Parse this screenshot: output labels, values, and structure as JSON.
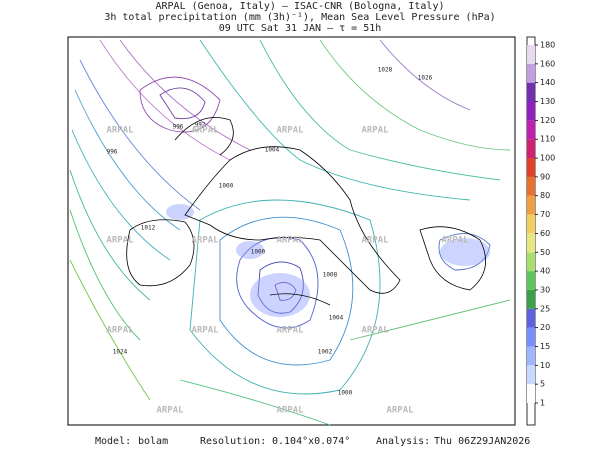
{
  "header": {
    "line1": "ARPAL (Genoa, Italy)  —  ISAC-CNR (Bologna, Italy)",
    "line2": "3h total precipitation (mm (3h)⁻¹), Mean Sea Level Pressure (hPa)",
    "line3": "09 UTC Sat 31 JAN  —  τ = 51h"
  },
  "colorbar": {
    "ticks": [
      1,
      5,
      10,
      15,
      20,
      25,
      30,
      40,
      50,
      60,
      70,
      80,
      90,
      100,
      110,
      120,
      130,
      140,
      160,
      180
    ],
    "colors": [
      "#ffffff",
      "#c8d8ff",
      "#9fb6ff",
      "#7a8fff",
      "#5f62e0",
      "#3aa04a",
      "#5cc85c",
      "#a8e070",
      "#e8e880",
      "#f2d060",
      "#f0a040",
      "#e87030",
      "#e04028",
      "#d02070",
      "#c020b0",
      "#9020c0",
      "#7030b0",
      "#c0a0e0",
      "#e8d8f0"
    ]
  },
  "isobar_labels": [
    "1028",
    "1026",
    "996",
    "992",
    "996",
    "1004",
    "1000",
    "1000",
    "1012",
    "1008",
    "1004",
    "1002",
    "1024",
    "1000"
  ],
  "watermark": "ARPAL",
  "footer": {
    "model_label": "Model:",
    "model": "bolam",
    "resolution_label": "Resolution:",
    "resolution": "0.104°x0.074°",
    "analysis_label": "Analysis:",
    "analysis": "Thu 06Z29JAN2026"
  }
}
